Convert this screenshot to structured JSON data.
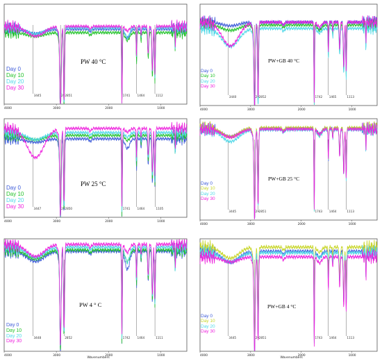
{
  "chart_data": [
    {
      "id": "pw40",
      "type": "line",
      "title": "PW 40 °C",
      "xlim": [
        4000,
        500
      ],
      "xticks": [
        4000,
        3000,
        2000,
        1000
      ],
      "peaks": [
        3445,
        2920,
        2851,
        1741,
        1464,
        1112
      ],
      "peak_labels": [
        "3445",
        "29",
        "2851",
        "1741",
        "1464",
        "1112"
      ],
      "xlabel": "",
      "series": [
        {
          "name": "Day 0",
          "color": "#3d5bd9"
        },
        {
          "name": "Day 10",
          "color": "#22c22a"
        },
        {
          "name": "Day 20",
          "color": "#4fd8e8"
        },
        {
          "name": "Day 30",
          "color": "#ee22dd"
        }
      ]
    },
    {
      "id": "pwgb40",
      "type": "line",
      "title": "PW+GB 40 °C",
      "xlim": [
        4000,
        500
      ],
      "xticks": [
        4000,
        3000,
        2000,
        1000
      ],
      "peaks": [
        3440,
        2920,
        2852,
        1742,
        1465,
        1113
      ],
      "peak_labels": [
        "3440",
        "29",
        "2852",
        "1742",
        "1465",
        "1113"
      ],
      "xlabel": "",
      "series": [
        {
          "name": "Day 0",
          "color": "#3d5bd9"
        },
        {
          "name": "Day 10",
          "color": "#22c22a"
        },
        {
          "name": "Day 20",
          "color": "#4fd8e8"
        },
        {
          "name": "Day 30",
          "color": "#ee22dd"
        }
      ]
    },
    {
      "id": "pw25",
      "type": "line",
      "title": "PW 25 °C",
      "xlim": [
        4000,
        500
      ],
      "xticks": [
        4000,
        3000,
        2000,
        1000
      ],
      "peaks": [
        3447,
        2920,
        2850,
        1741,
        1464,
        1105
      ],
      "peak_labels": [
        "3447",
        "29",
        "2850",
        "1741",
        "1464",
        "1105"
      ],
      "xlabel": "",
      "series": [
        {
          "name": "Day 0",
          "color": "#3d5bd9"
        },
        {
          "name": "Day 10",
          "color": "#22c22a"
        },
        {
          "name": "Day 20",
          "color": "#4fd8e8"
        },
        {
          "name": "Day 30",
          "color": "#ee22dd"
        }
      ]
    },
    {
      "id": "pwgb25",
      "type": "line",
      "title": "PW+GB 25 °C",
      "xlim": [
        4000,
        500
      ],
      "xticks": [
        4000,
        3000,
        2000,
        1000
      ],
      "peaks": [
        3445,
        2920,
        2851,
        1743,
        1464,
        1113
      ],
      "peak_labels": [
        "3445",
        "29",
        "2851",
        "1743",
        "1464",
        "1113"
      ],
      "xlabel": "",
      "series": [
        {
          "name": "Day 0",
          "color": "#3d5bd9"
        },
        {
          "name": "Day 10",
          "color": "#c8d62a"
        },
        {
          "name": "Day 20",
          "color": "#4fd8e8"
        },
        {
          "name": "Day 30",
          "color": "#ee22dd"
        }
      ]
    },
    {
      "id": "pw4",
      "type": "line",
      "title": "PW 4 ° C",
      "xlim": [
        4000,
        500
      ],
      "xticks": [
        4000,
        3000,
        2000,
        1000
      ],
      "peaks": [
        3448,
        2852,
        1742,
        1464,
        1111
      ],
      "peak_labels": [
        "3448",
        "2852",
        "1742",
        "1464",
        "1111"
      ],
      "xlabel": "Wavenumbers",
      "series": [
        {
          "name": "Day 0",
          "color": "#3d5bd9"
        },
        {
          "name": "Day 10",
          "color": "#22c22a"
        },
        {
          "name": "Day 20",
          "color": "#4fd8e8"
        },
        {
          "name": "Day 30",
          "color": "#ee22dd"
        }
      ]
    },
    {
      "id": "pwgb4",
      "type": "line",
      "title": "PW+GB 4 °C",
      "xlim": [
        4000,
        500
      ],
      "xticks": [
        4000,
        3000,
        2000,
        1000
      ],
      "peaks": [
        3445,
        2920,
        2851,
        1743,
        1464,
        1113
      ],
      "peak_labels": [
        "3445",
        "29",
        "2851",
        "1743",
        "1464",
        "1113"
      ],
      "xlabel": "Wavenumbers",
      "series": [
        {
          "name": "Day 0",
          "color": "#3d5bd9"
        },
        {
          "name": "Day 10",
          "color": "#c8d62a"
        },
        {
          "name": "Day 20",
          "color": "#4fd8e8"
        },
        {
          "name": "Day 30",
          "color": "#ee22dd"
        }
      ]
    }
  ]
}
